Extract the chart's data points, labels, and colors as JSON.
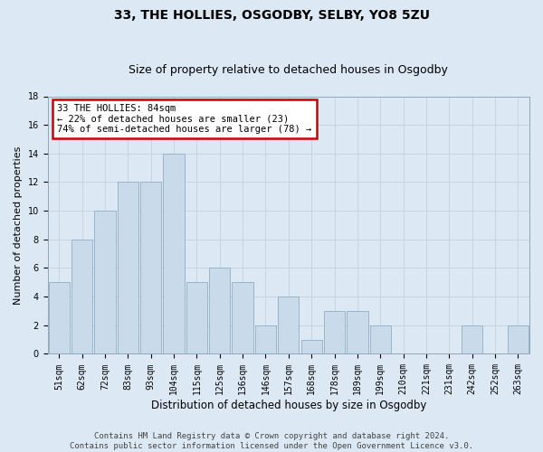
{
  "title": "33, THE HOLLIES, OSGODBY, SELBY, YO8 5ZU",
  "subtitle": "Size of property relative to detached houses in Osgodby",
  "xlabel": "Distribution of detached houses by size in Osgodby",
  "ylabel": "Number of detached properties",
  "footer_line1": "Contains HM Land Registry data © Crown copyright and database right 2024.",
  "footer_line2": "Contains public sector information licensed under the Open Government Licence v3.0.",
  "bar_labels": [
    "51sqm",
    "62sqm",
    "72sqm",
    "83sqm",
    "93sqm",
    "104sqm",
    "115sqm",
    "125sqm",
    "136sqm",
    "146sqm",
    "157sqm",
    "168sqm",
    "178sqm",
    "189sqm",
    "199sqm",
    "210sqm",
    "221sqm",
    "231sqm",
    "242sqm",
    "252sqm",
    "263sqm"
  ],
  "bar_values": [
    5,
    8,
    10,
    12,
    12,
    14,
    5,
    6,
    5,
    2,
    4,
    1,
    3,
    3,
    2,
    0,
    0,
    0,
    2,
    0,
    2
  ],
  "bar_color": "#c9daea",
  "bar_edge_color": "#9ab4c8",
  "annotation_line1": "33 THE HOLLIES: 84sqm",
  "annotation_line2": "← 22% of detached houses are smaller (23)",
  "annotation_line3": "74% of semi-detached houses are larger (78) →",
  "annotation_box_color": "#cc0000",
  "annotation_box_fill": "#ffffff",
  "grid_color": "#c8d4e0",
  "background_color": "#dce8f4",
  "plot_bg_color": "#dce8f4",
  "ylim": [
    0,
    18
  ],
  "yticks": [
    0,
    2,
    4,
    6,
    8,
    10,
    12,
    14,
    16,
    18
  ],
  "title_fontsize": 10,
  "subtitle_fontsize": 9,
  "xlabel_fontsize": 8.5,
  "ylabel_fontsize": 8,
  "tick_fontsize": 7,
  "footer_fontsize": 6.5,
  "annot_fontsize": 7.5
}
